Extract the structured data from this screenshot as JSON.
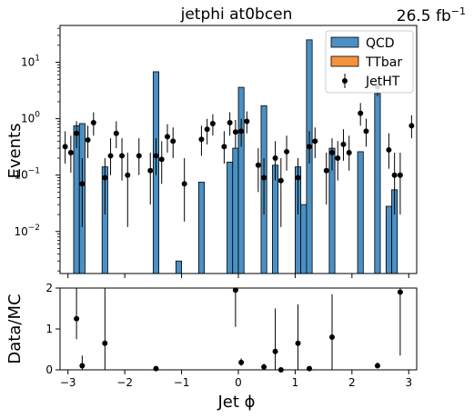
{
  "chart_data": {
    "type": "bar",
    "title": "jetphi  at0bcen",
    "lumi": "26.5 fb",
    "lumi_sup": "−1",
    "xlabel": "Jet ϕ",
    "x_bin_edges_range": [
      -3.2,
      3.2
    ],
    "n_bins": 64,
    "xlim": [
      -3.14,
      3.14
    ],
    "top_panel": {
      "ylabel": "Events",
      "yscale": "log",
      "ylim": [
        0.0018,
        45
      ],
      "y_ticks": [
        {
          "v": 0.01,
          "base": "10",
          "exp": "−2"
        },
        {
          "v": 0.1,
          "base": "10",
          "exp": "−1"
        },
        {
          "v": 1,
          "base": "10",
          "exp": "0"
        },
        {
          "v": 10,
          "base": "10",
          "exp": "1"
        }
      ],
      "series": [
        {
          "name": "QCD",
          "kind": "stacked-bar",
          "color": "#4a90c4",
          "bins": [
            {
              "lo": -2.9,
              "hi": -2.8,
              "v": 0.75
            },
            {
              "lo": -2.8,
              "hi": -2.7,
              "v": 0.82
            },
            {
              "lo": -2.4,
              "hi": -2.3,
              "v": 0.14
            },
            {
              "lo": -1.5,
              "hi": -1.4,
              "v": 6.8
            },
            {
              "lo": -1.1,
              "hi": -1.0,
              "v": 0.003
            },
            {
              "lo": -0.7,
              "hi": -0.6,
              "v": 0.075
            },
            {
              "lo": -0.2,
              "hi": -0.1,
              "v": 0.17
            },
            {
              "lo": -0.1,
              "hi": 0.0,
              "v": 0.3
            },
            {
              "lo": 0.0,
              "hi": 0.1,
              "v": 3.6
            },
            {
              "lo": 0.4,
              "hi": 0.5,
              "v": 1.7
            },
            {
              "lo": 0.6,
              "hi": 0.7,
              "v": 0.15
            },
            {
              "lo": 1.0,
              "hi": 1.1,
              "v": 0.14
            },
            {
              "lo": 1.1,
              "hi": 1.2,
              "v": 0.03
            },
            {
              "lo": 1.2,
              "hi": 1.3,
              "v": 25
            },
            {
              "lo": 1.6,
              "hi": 1.7,
              "v": 0.3
            },
            {
              "lo": 2.1,
              "hi": 2.2,
              "v": 0.26
            },
            {
              "lo": 2.4,
              "hi": 2.5,
              "v": 2.8
            },
            {
              "lo": 2.6,
              "hi": 2.7,
              "v": 0.028
            },
            {
              "lo": 2.7,
              "hi": 2.8,
              "v": 0.055
            }
          ]
        },
        {
          "name": "TTbar",
          "kind": "stacked-bar",
          "color": "#f5923e",
          "bins": []
        },
        {
          "name": "JetHT",
          "kind": "errorbar",
          "color": "#000000",
          "points": [
            {
              "x": -3.05,
              "y": 0.32,
              "lo": 0.16,
              "hi": 0.6
            },
            {
              "x": -2.95,
              "y": 0.25,
              "lo": 0.11,
              "hi": 0.5
            },
            {
              "x": -2.85,
              "y": 0.55,
              "lo": 0.3,
              "hi": 0.9
            },
            {
              "x": -2.75,
              "y": 0.07,
              "lo": 0.012,
              "hi": 0.2
            },
            {
              "x": -2.65,
              "y": 0.42,
              "lo": 0.2,
              "hi": 0.75
            },
            {
              "x": -2.55,
              "y": 0.85,
              "lo": 0.5,
              "hi": 1.3
            },
            {
              "x": -2.35,
              "y": 0.09,
              "lo": 0.02,
              "hi": 0.2
            },
            {
              "x": -2.25,
              "y": 0.22,
              "lo": 0.1,
              "hi": 0.45
            },
            {
              "x": -2.15,
              "y": 0.55,
              "lo": 0.3,
              "hi": 0.9
            },
            {
              "x": -2.05,
              "y": 0.22,
              "lo": 0.08,
              "hi": 0.45
            },
            {
              "x": -1.95,
              "y": 0.1,
              "lo": 0.012,
              "hi": 0.25
            },
            {
              "x": -1.75,
              "y": 0.22,
              "lo": 0.1,
              "hi": 0.45
            },
            {
              "x": -1.55,
              "y": 0.12,
              "lo": 0.03,
              "hi": 0.25
            },
            {
              "x": -1.45,
              "y": 0.22,
              "lo": 0.1,
              "hi": 0.45
            },
            {
              "x": -1.35,
              "y": 0.19,
              "lo": 0.07,
              "hi": 0.4
            },
            {
              "x": -1.25,
              "y": 0.48,
              "lo": 0.25,
              "hi": 0.8
            },
            {
              "x": -1.15,
              "y": 0.4,
              "lo": 0.2,
              "hi": 0.7
            },
            {
              "x": -0.95,
              "y": 0.07,
              "lo": 0.015,
              "hi": 0.2
            },
            {
              "x": -0.65,
              "y": 0.43,
              "lo": 0.22,
              "hi": 0.75
            },
            {
              "x": -0.55,
              "y": 0.65,
              "lo": 0.35,
              "hi": 1.0
            },
            {
              "x": -0.45,
              "y": 0.82,
              "lo": 0.5,
              "hi": 1.2
            },
            {
              "x": -0.25,
              "y": 0.32,
              "lo": 0.16,
              "hi": 0.6
            },
            {
              "x": -0.15,
              "y": 0.85,
              "lo": 0.5,
              "hi": 1.3
            },
            {
              "x": -0.05,
              "y": 0.58,
              "lo": 0.3,
              "hi": 0.95
            },
            {
              "x": 0.05,
              "y": 0.6,
              "lo": 0.32,
              "hi": 1.0
            },
            {
              "x": 0.15,
              "y": 0.9,
              "lo": 0.55,
              "hi": 1.35
            },
            {
              "x": 0.35,
              "y": 0.15,
              "lo": 0.05,
              "hi": 0.3
            },
            {
              "x": 0.45,
              "y": 0.09,
              "lo": 0.02,
              "hi": 0.2
            },
            {
              "x": 0.65,
              "y": 0.2,
              "lo": 0.08,
              "hi": 0.4
            },
            {
              "x": 0.75,
              "y": 0.08,
              "lo": 0.012,
              "hi": 0.2
            },
            {
              "x": 0.85,
              "y": 0.26,
              "lo": 0.12,
              "hi": 0.5
            },
            {
              "x": 1.05,
              "y": 0.09,
              "lo": 0.02,
              "hi": 0.2
            },
            {
              "x": 1.25,
              "y": 0.32,
              "lo": 0.16,
              "hi": 0.6
            },
            {
              "x": 1.35,
              "y": 0.4,
              "lo": 0.2,
              "hi": 0.7
            },
            {
              "x": 1.55,
              "y": 0.12,
              "lo": 0.03,
              "hi": 0.25
            },
            {
              "x": 1.65,
              "y": 0.25,
              "lo": 0.12,
              "hi": 0.45
            },
            {
              "x": 1.75,
              "y": 0.2,
              "lo": 0.08,
              "hi": 0.4
            },
            {
              "x": 1.85,
              "y": 0.35,
              "lo": 0.18,
              "hi": 0.65
            },
            {
              "x": 1.95,
              "y": 0.25,
              "lo": 0.12,
              "hi": 0.5
            },
            {
              "x": 2.15,
              "y": 1.25,
              "lo": 0.75,
              "hi": 1.9
            },
            {
              "x": 2.25,
              "y": 0.6,
              "lo": 0.32,
              "hi": 1.0
            },
            {
              "x": 2.45,
              "y": 3.7,
              "lo": 2.5,
              "hi": 5.3
            },
            {
              "x": 2.65,
              "y": 0.28,
              "lo": 0.13,
              "hi": 0.55
            },
            {
              "x": 2.75,
              "y": 0.1,
              "lo": 0.02,
              "hi": 0.25
            },
            {
              "x": 2.85,
              "y": 0.1,
              "lo": 0.02,
              "hi": 0.25
            },
            {
              "x": 3.05,
              "y": 0.75,
              "lo": 0.45,
              "hi": 1.15
            }
          ]
        }
      ],
      "legend_position": "top-right"
    },
    "ratio_panel": {
      "ylabel": "Data/MC",
      "ylim": [
        0,
        2
      ],
      "y_ticks": [
        "0",
        "1",
        "2"
      ],
      "points": [
        {
          "x": -2.85,
          "y": 1.25,
          "lo": 0.75,
          "hi": 2.0
        },
        {
          "x": -2.75,
          "y": 0.1,
          "lo": 0.0,
          "hi": 0.35
        },
        {
          "x": -2.35,
          "y": 0.65,
          "lo": 0.0,
          "hi": 2.0
        },
        {
          "x": -1.45,
          "y": 0.03,
          "lo": 0.0,
          "hi": 0.08
        },
        {
          "x": -0.05,
          "y": 1.95,
          "lo": 1.05,
          "hi": 2.0
        },
        {
          "x": 0.05,
          "y": 0.18,
          "lo": 0.1,
          "hi": 0.28
        },
        {
          "x": 0.45,
          "y": 0.07,
          "lo": 0.0,
          "hi": 0.15
        },
        {
          "x": 0.65,
          "y": 0.45,
          "lo": 0.0,
          "hi": 1.5
        },
        {
          "x": 0.75,
          "y": 0.0,
          "lo": 0.0,
          "hi": 0.0
        },
        {
          "x": 1.05,
          "y": 0.65,
          "lo": 0.0,
          "hi": 1.6
        },
        {
          "x": 1.25,
          "y": 0.03,
          "lo": 0.0,
          "hi": 0.08
        },
        {
          "x": 1.65,
          "y": 0.8,
          "lo": 0.0,
          "hi": 1.85
        },
        {
          "x": 2.45,
          "y": 0.1,
          "lo": 0.05,
          "hi": 0.18
        },
        {
          "x": 2.85,
          "y": 1.9,
          "lo": 0.35,
          "hi": 2.0
        }
      ]
    },
    "x_ticks": [
      {
        "v": -3,
        "label": "−3"
      },
      {
        "v": -2,
        "label": "−2"
      },
      {
        "v": -1,
        "label": "−1"
      },
      {
        "v": 0,
        "label": "0"
      },
      {
        "v": 1,
        "label": "1"
      },
      {
        "v": 2,
        "label": "2"
      },
      {
        "v": 3,
        "label": "3"
      }
    ],
    "grid": false
  }
}
